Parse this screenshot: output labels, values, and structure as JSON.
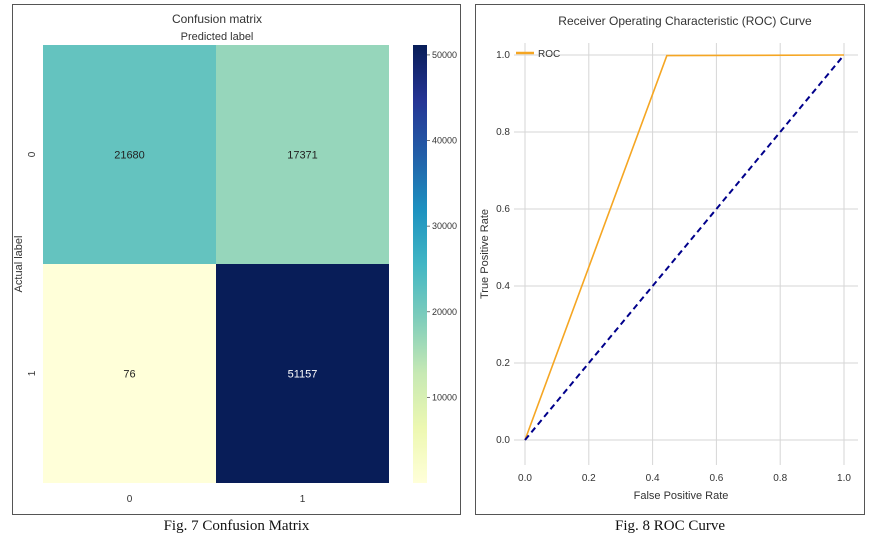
{
  "chart_data": [
    {
      "type": "heatmap",
      "title": "Confusion matrix",
      "subtitle": "Predicted label",
      "ylabel": "Actual label",
      "x_tick_labels": [
        "0",
        "1"
      ],
      "y_tick_labels": [
        "0",
        "1"
      ],
      "values": [
        [
          21680,
          17371
        ],
        [
          76,
          51157
        ]
      ],
      "value_labels": [
        "21680",
        "17371",
        "76",
        "51157"
      ],
      "colorscale": "YlGnBu",
      "colorbar_range": [
        0,
        51157
      ],
      "colorbar_ticks": [
        10000,
        20000,
        30000,
        40000,
        50000
      ],
      "colorbar_tick_labels": [
        "10000",
        "20000",
        "30000",
        "40000",
        "50000"
      ],
      "cell_colors": [
        "#64c3bf",
        "#96d6bb",
        "#ffffd9",
        "#081d58"
      ],
      "caption": "Fig. 7 Confusion Matrix"
    },
    {
      "type": "line",
      "title": "Receiver Operating Characteristic (ROC) Curve",
      "xlabel": "False Positive Rate",
      "ylabel": "True Positive Rate",
      "xlim": [
        0,
        1
      ],
      "ylim": [
        0,
        1
      ],
      "x_ticks": [
        0.0,
        0.2,
        0.4,
        0.6,
        0.8,
        1.0
      ],
      "y_ticks": [
        0.0,
        0.2,
        0.4,
        0.6,
        0.8,
        1.0
      ],
      "x_tick_labels": [
        "0.0",
        "0.2",
        "0.4",
        "0.6",
        "0.8",
        "1.0"
      ],
      "y_tick_labels": [
        "0.0",
        "0.2",
        "0.4",
        "0.6",
        "0.8",
        "1.0"
      ],
      "grid": true,
      "legend_position": "top-left",
      "series": [
        {
          "name": "ROC",
          "color": "#f5a623",
          "style": "solid",
          "x": [
            0.0,
            0.4447,
            1.0
          ],
          "y": [
            0.0,
            0.9985,
            1.0
          ]
        },
        {
          "color": "#00008b",
          "style": "dashed",
          "x": [
            0.0,
            1.0
          ],
          "y": [
            0.0,
            1.0
          ]
        }
      ],
      "caption": "Fig. 8 ROC Curve"
    }
  ]
}
